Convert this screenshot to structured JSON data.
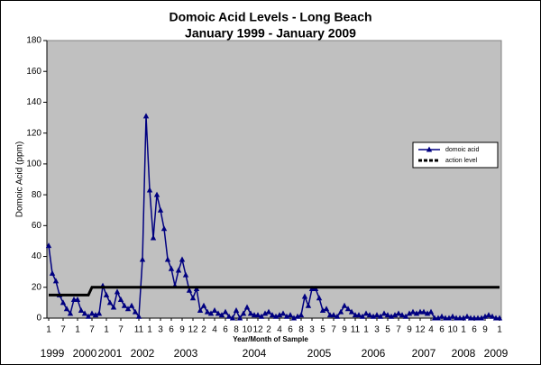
{
  "chart_data": {
    "type": "line",
    "title": "Domoic Acid Levels - Long Beach",
    "subtitle": "January 1999 - January 2009",
    "y_label": "Domoic Acid (ppm)",
    "x_label": "Year/Month of Sample",
    "ylim": [
      0,
      180
    ],
    "yticks": [
      0,
      20,
      40,
      60,
      80,
      100,
      120,
      140,
      160,
      180
    ],
    "grid": false,
    "legend": "right",
    "categories": [
      "1",
      null,
      null,
      null,
      "7",
      null,
      null,
      null,
      "1",
      null,
      null,
      null,
      "7",
      null,
      null,
      null,
      "1",
      null,
      null,
      null,
      "7",
      null,
      null,
      null,
      null,
      "11",
      null,
      null,
      "1",
      null,
      null,
      "3",
      null,
      null,
      "6",
      null,
      null,
      "9",
      null,
      null,
      "12",
      null,
      null,
      "2",
      null,
      null,
      "4",
      null,
      null,
      "6",
      null,
      null,
      "8",
      null,
      null,
      "10",
      null,
      null,
      "12",
      null,
      null,
      "2",
      null,
      null,
      "4",
      null,
      null,
      "6",
      null,
      null,
      "8",
      null,
      null,
      "3",
      null,
      null,
      "5",
      null,
      null,
      "7",
      null,
      null,
      "9",
      null,
      null,
      "11",
      null,
      null,
      "1",
      null,
      null,
      "3",
      null,
      null,
      "5",
      null,
      null,
      "7",
      null,
      null,
      "9",
      null,
      null,
      "12",
      null,
      null,
      "4",
      null,
      null,
      "6",
      null,
      null,
      "10",
      null,
      null,
      "1",
      null,
      null,
      "6",
      null,
      null,
      "9",
      null,
      null,
      null,
      "1"
    ],
    "year_categories": [
      null,
      "1999",
      null,
      null,
      null,
      null,
      null,
      null,
      null,
      null,
      "2000",
      null,
      null,
      null,
      null,
      null,
      null,
      "2001",
      null,
      null,
      null,
      null,
      null,
      null,
      null,
      null,
      "2002",
      null,
      null,
      null,
      null,
      null,
      null,
      null,
      null,
      null,
      null,
      null,
      "2003",
      null,
      null,
      null,
      null,
      null,
      null,
      null,
      null,
      null,
      null,
      null,
      null,
      null,
      null,
      null,
      null,
      null,
      null,
      "2004",
      null,
      null,
      null,
      null,
      null,
      null,
      null,
      null,
      null,
      null,
      null,
      null,
      null,
      null,
      null,
      null,
      null,
      "2005",
      null,
      null,
      null,
      null,
      null,
      null,
      null,
      null,
      null,
      null,
      null,
      null,
      null,
      null,
      "2006",
      null,
      null,
      null,
      null,
      null,
      null,
      null,
      null,
      null,
      null,
      null,
      null,
      null,
      "2007",
      null,
      null,
      null,
      null,
      null,
      null,
      null,
      null,
      null,
      null,
      "2008",
      null,
      null,
      null,
      null,
      null,
      null,
      null,
      null,
      "2009",
      null
    ],
    "series": [
      {
        "name": "domoic acid",
        "color": "#000080",
        "marker": "triangle",
        "values": [
          47,
          29,
          24,
          15,
          10,
          6,
          3,
          12,
          12,
          5,
          3,
          1,
          3,
          2,
          3,
          21,
          15,
          10,
          7,
          17,
          12,
          8,
          6,
          8,
          4,
          1,
          38,
          131,
          83,
          52,
          80,
          70,
          58,
          38,
          32,
          21,
          31,
          38,
          28,
          18,
          13,
          19,
          5,
          8,
          4,
          3,
          5,
          3,
          2,
          4,
          1,
          0,
          5,
          0,
          3,
          7,
          3,
          2,
          2,
          1,
          3,
          4,
          2,
          1,
          2,
          3,
          1,
          2,
          0,
          1,
          2,
          14,
          8,
          19,
          19,
          13,
          5,
          6,
          2,
          2,
          1,
          4,
          8,
          6,
          4,
          2,
          2,
          1,
          3,
          2,
          1,
          2,
          1,
          3,
          2,
          1,
          2,
          3,
          2,
          1,
          3,
          4,
          3,
          4,
          4,
          3,
          4,
          0,
          0,
          1,
          0,
          0,
          1,
          0,
          0,
          0,
          1,
          0,
          0,
          0,
          0,
          1,
          2,
          1,
          0,
          0
        ]
      },
      {
        "name": "action level",
        "color": "#000000",
        "marker": "none",
        "values": [
          15,
          15,
          15,
          15,
          15,
          15,
          15,
          15,
          15,
          15,
          15,
          15,
          20,
          20,
          20,
          20,
          20,
          20,
          20,
          20,
          20,
          20,
          20,
          20,
          20,
          20,
          20,
          20,
          20,
          20,
          20,
          20,
          20,
          20,
          20,
          20,
          20,
          20,
          20,
          20,
          20,
          20,
          20,
          20,
          20,
          20,
          20,
          20,
          20,
          20,
          20,
          20,
          20,
          20,
          20,
          20,
          20,
          20,
          20,
          20,
          20,
          20,
          20,
          20,
          20,
          20,
          20,
          20,
          20,
          20,
          20,
          20,
          20,
          20,
          20,
          20,
          20,
          20,
          20,
          20,
          20,
          20,
          20,
          20,
          20,
          20,
          20,
          20,
          20,
          20,
          20,
          20,
          20,
          20,
          20,
          20,
          20,
          20,
          20,
          20,
          20,
          20,
          20,
          20,
          20,
          20,
          20,
          20,
          20,
          20,
          20,
          20,
          20,
          20,
          20,
          20,
          20,
          20,
          20,
          20,
          20,
          20,
          20,
          20,
          20,
          20
        ]
      }
    ]
  }
}
